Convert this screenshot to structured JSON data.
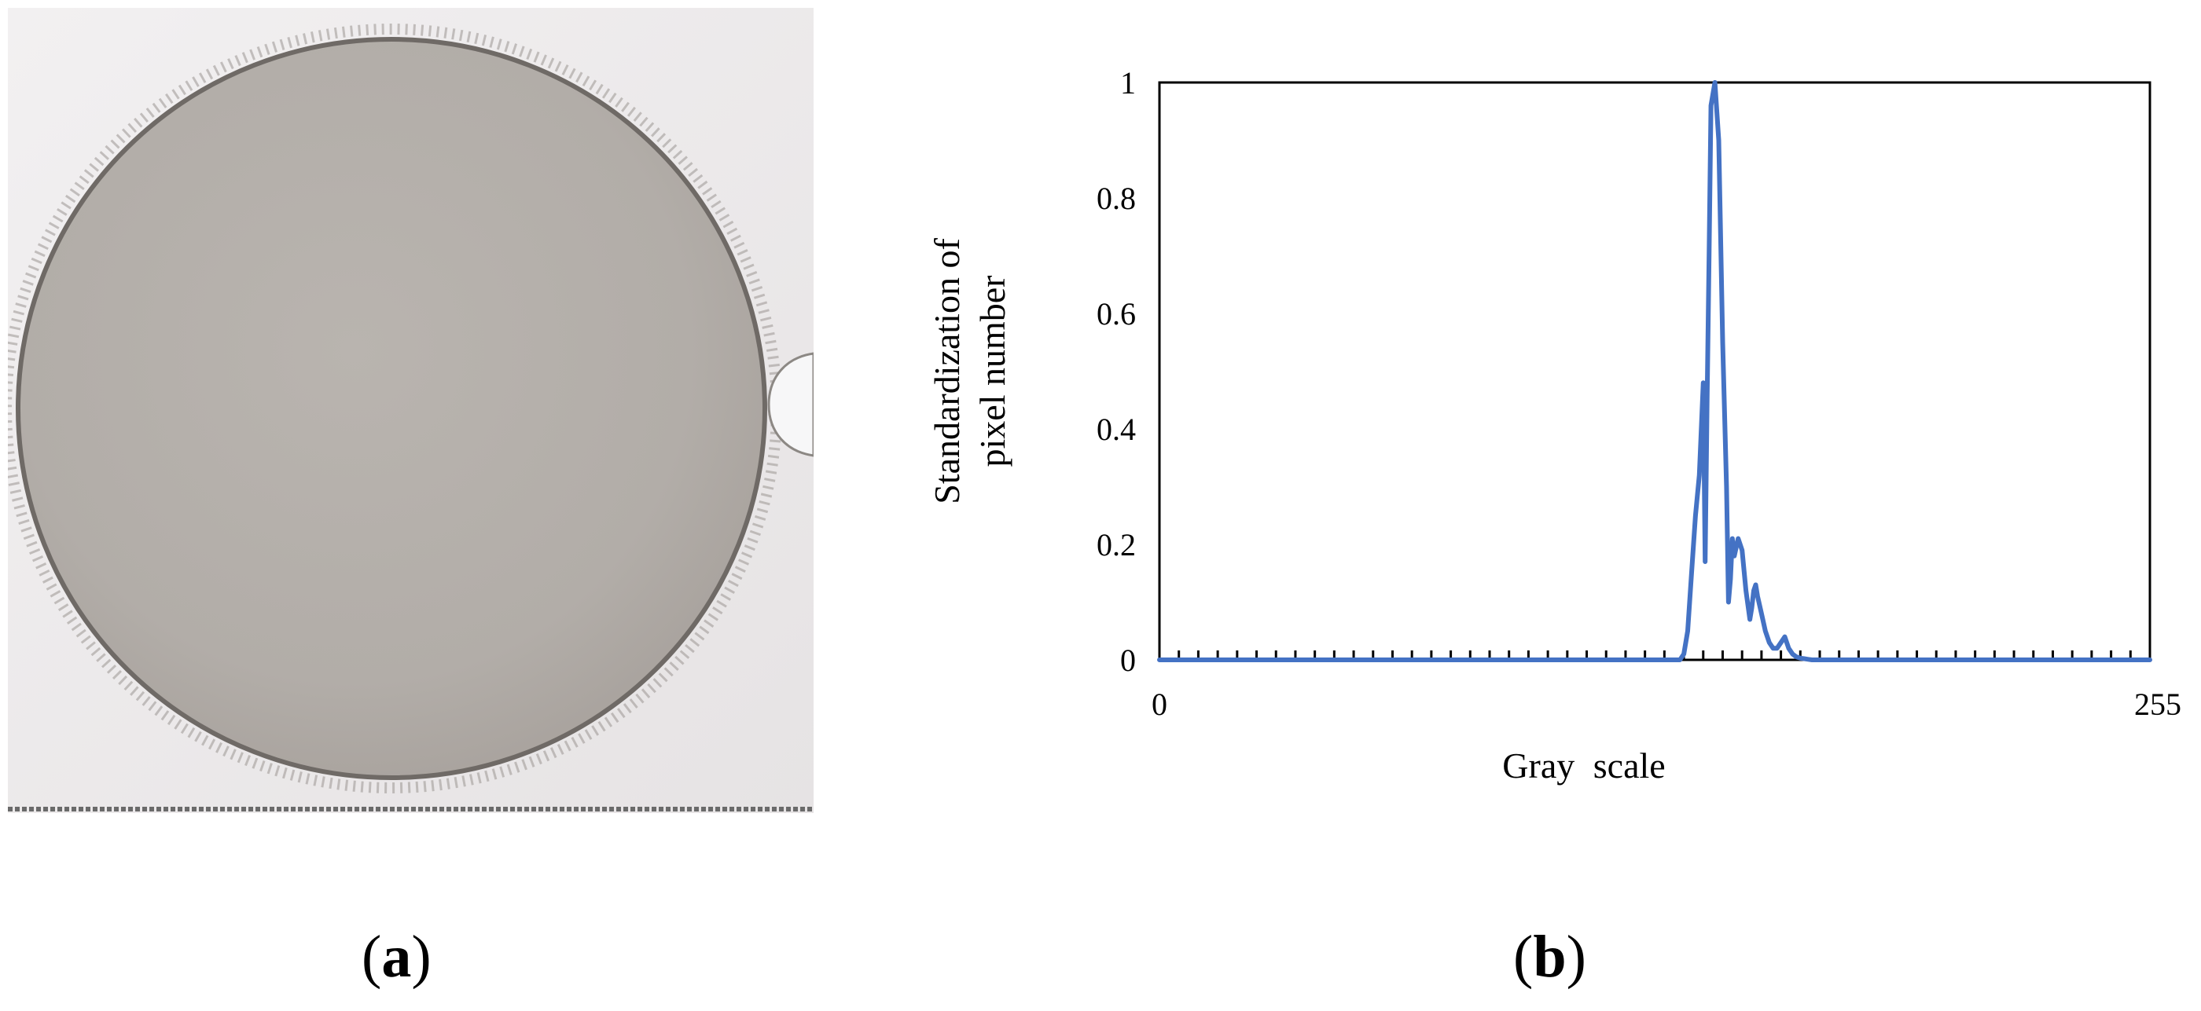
{
  "panels": {
    "a": {
      "label_open": "(",
      "label_letter": "a",
      "label_close": ")"
    },
    "b": {
      "label_open": "(",
      "label_letter": "b",
      "label_close": ")"
    }
  },
  "colors": {
    "series": "#4472C4",
    "axis": "#000000",
    "photo_background": "#ece9ea",
    "disc_fill": "#b5b0ab",
    "disc_edge": "#6f6a66"
  },
  "chart_data": {
    "type": "line",
    "title": "",
    "xlabel": "Gray scale",
    "ylabel_lines": [
      "Standardization of",
      "pixel number"
    ],
    "xlim": [
      0,
      255
    ],
    "ylim": [
      0,
      1
    ],
    "x_tick_labels": [
      "0",
      "255"
    ],
    "y_tick_labels": [
      "0",
      "0.2",
      "0.4",
      "0.6",
      "0.8",
      "1"
    ],
    "y_ticks": [
      0,
      0.2,
      0.4,
      0.6,
      0.8,
      1
    ],
    "grid": false,
    "legend": "none",
    "series": [
      {
        "x": [
          0,
          134,
          135,
          136,
          137,
          138,
          139,
          140,
          140.5,
          141,
          141.5,
          142,
          143,
          144,
          145,
          146,
          146.5,
          147,
          147.5,
          148,
          149,
          149.5,
          150,
          151,
          152,
          152.5,
          153,
          153.5,
          154,
          155,
          156,
          157,
          158,
          159,
          160,
          161,
          162,
          163,
          164,
          165,
          166,
          167,
          168,
          169,
          170,
          172,
          255
        ],
        "y": [
          0,
          0,
          0.01,
          0.05,
          0.15,
          0.25,
          0.32,
          0.48,
          0.17,
          0.45,
          0.7,
          0.96,
          1.0,
          0.9,
          0.55,
          0.3,
          0.1,
          0.14,
          0.21,
          0.18,
          0.21,
          0.2,
          0.19,
          0.12,
          0.07,
          0.09,
          0.12,
          0.13,
          0.11,
          0.08,
          0.05,
          0.03,
          0.02,
          0.02,
          0.03,
          0.04,
          0.02,
          0.01,
          0.005,
          0.003,
          0.002,
          0.001,
          0,
          0,
          0,
          0,
          0
        ]
      }
    ]
  }
}
